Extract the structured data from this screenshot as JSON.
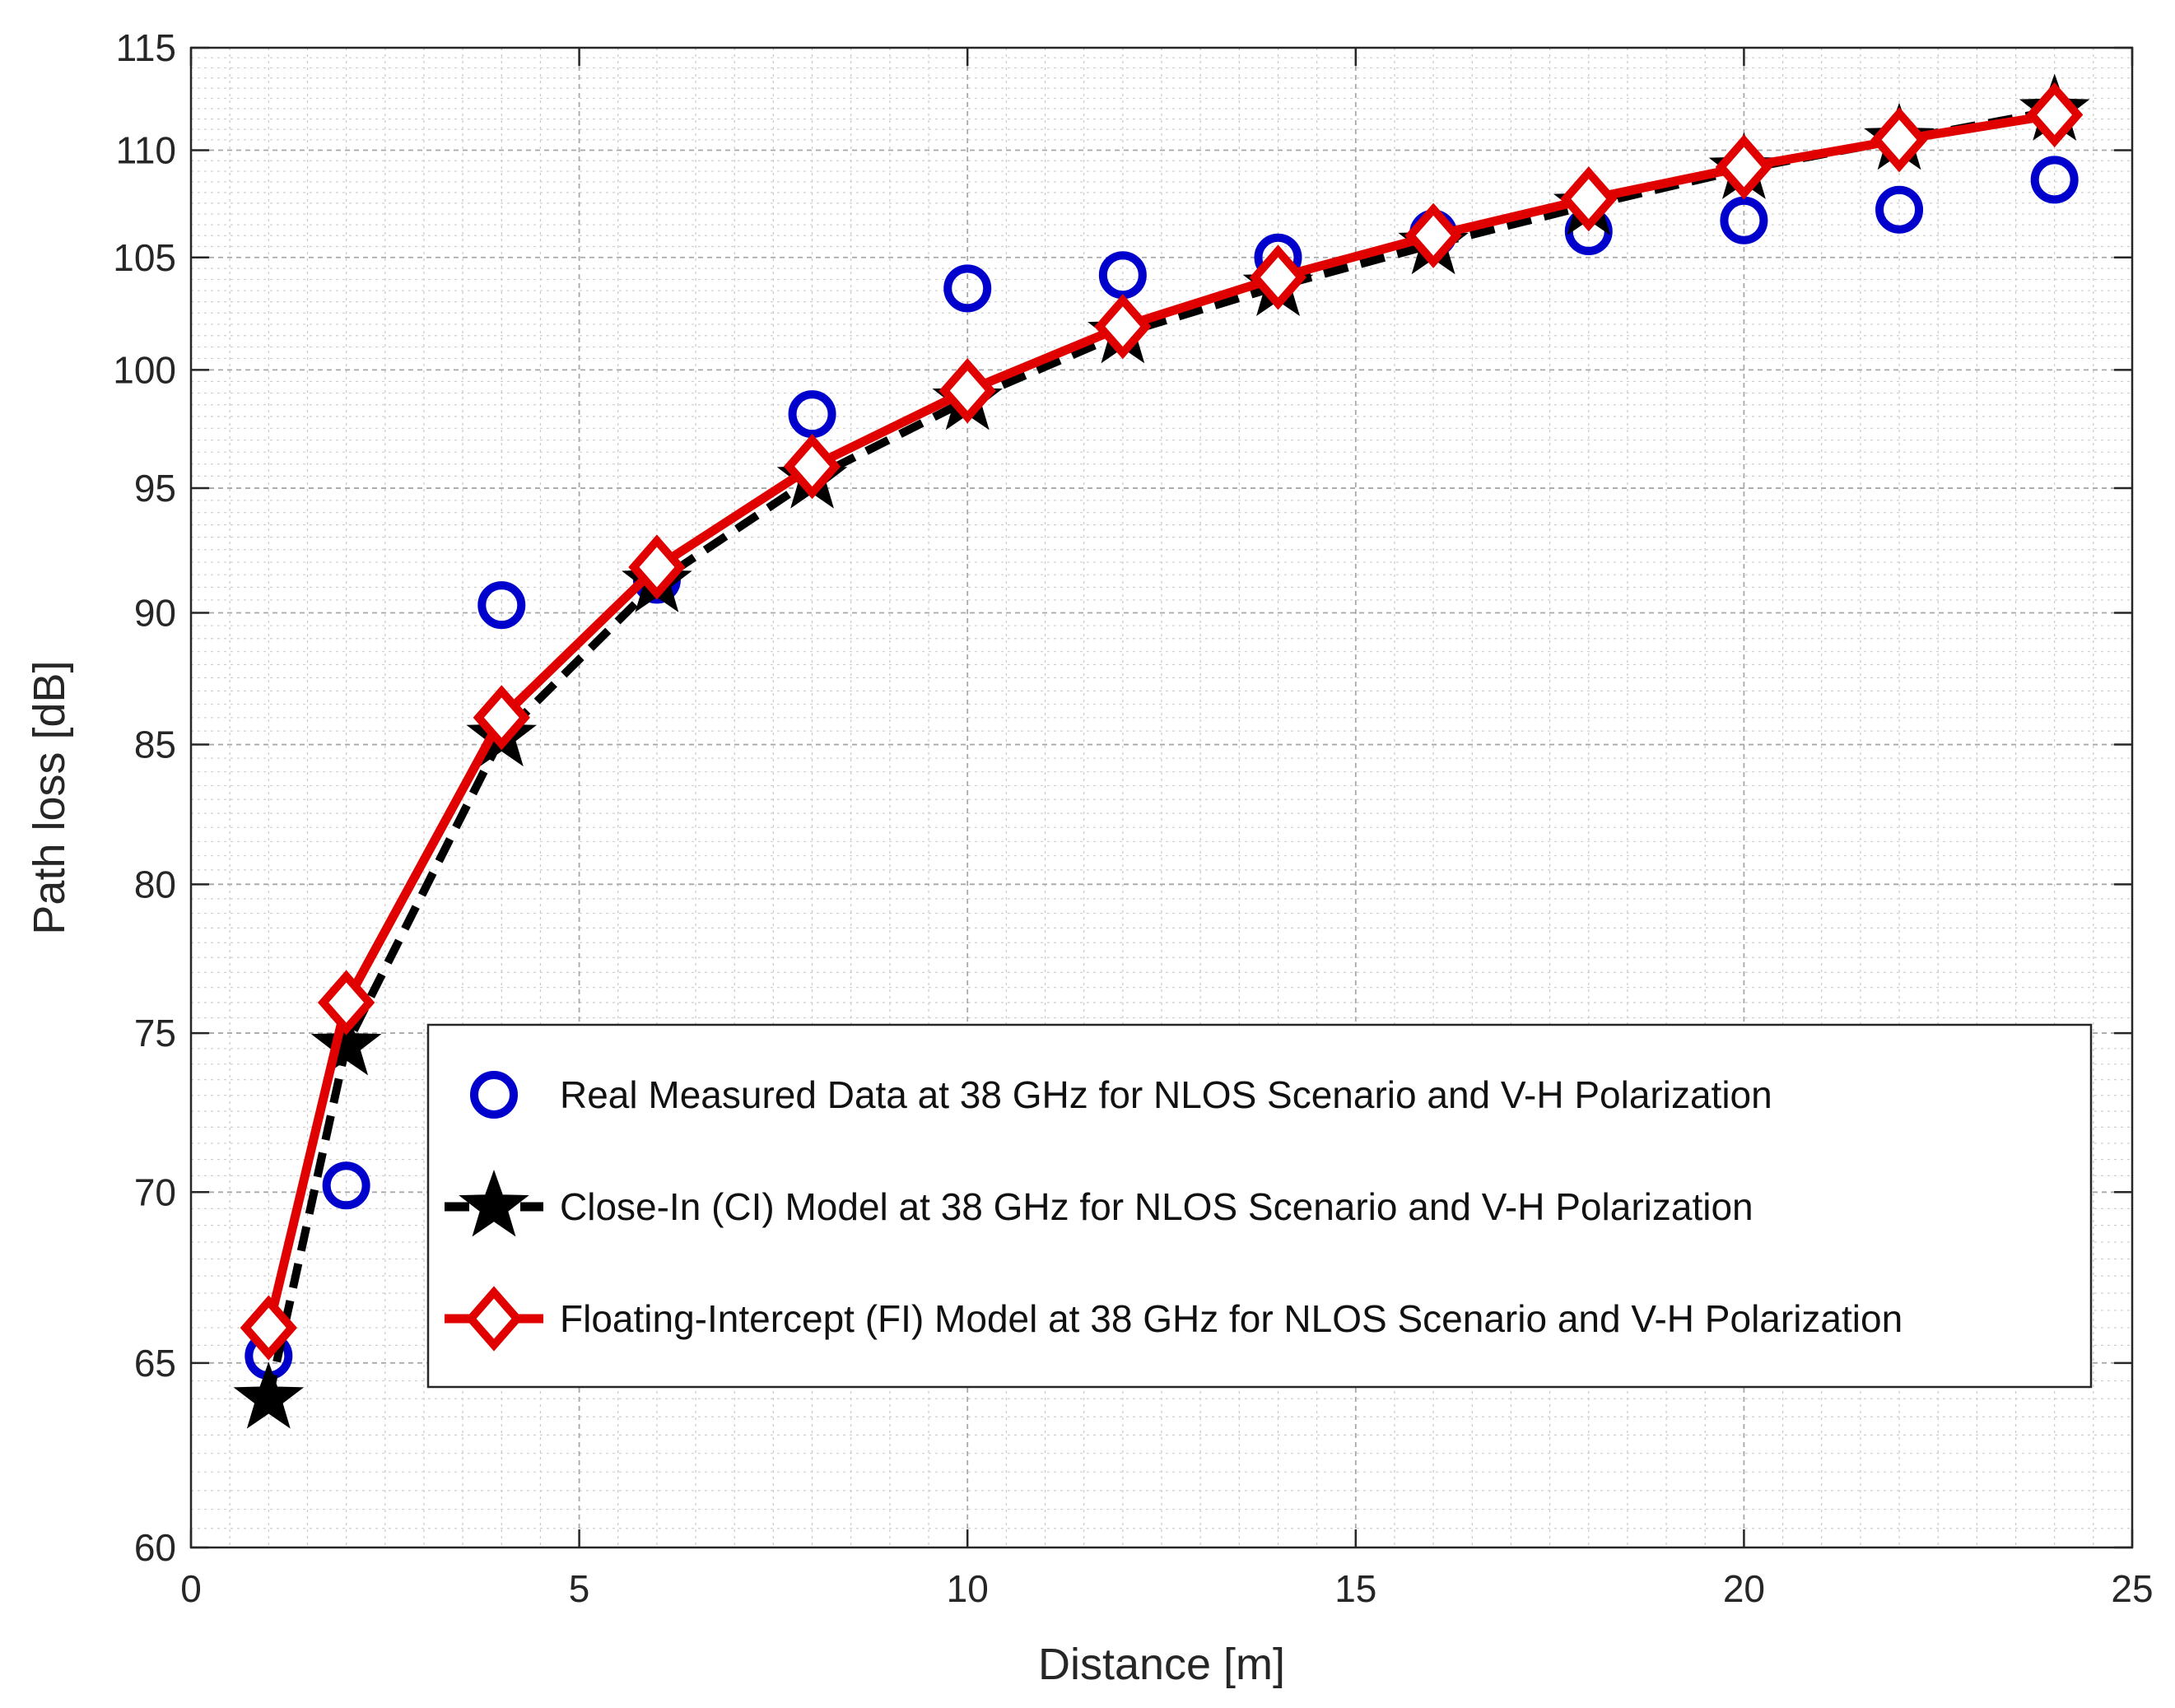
{
  "chart_data": {
    "type": "line",
    "title": "",
    "xlabel": "Distance [m]",
    "ylabel": "Path loss [dB]",
    "xlim": [
      0,
      25
    ],
    "ylim": [
      60,
      115
    ],
    "y_scale": "log",
    "grid": true,
    "minor_grid": true,
    "x_ticks": [
      0,
      5,
      10,
      15,
      20,
      25
    ],
    "y_ticks": [
      60,
      65,
      70,
      75,
      80,
      85,
      90,
      95,
      100,
      105,
      110,
      115
    ],
    "x": [
      1,
      2,
      4,
      6,
      8,
      10,
      12,
      14,
      16,
      18,
      20,
      22,
      24
    ],
    "legend_position": "lower-right",
    "series": [
      {
        "name": "Real Measured Data at 38 GHz for NLOS Scenario and V-H Polarization",
        "marker": "circle",
        "line": "none",
        "color": "#0000CC",
        "values": [
          65.2,
          70.2,
          90.3,
          91.3,
          98.1,
          103.6,
          104.2,
          105.0,
          106.1,
          106.2,
          106.7,
          107.2,
          108.6
        ]
      },
      {
        "name": "Close-In (CI) Model at 38 GHz for NLOS Scenario and V-H Polarization",
        "marker": "star",
        "line": "dashed",
        "color": "#000000",
        "values": [
          64.0,
          74.6,
          85.3,
          91.2,
          95.4,
          98.7,
          101.6,
          103.7,
          105.6,
          107.4,
          109.1,
          110.5,
          111.9
        ]
      },
      {
        "name": "Floating-Intercept (FI) Model at 38 GHz for NLOS Scenario and V-H Polarization",
        "marker": "diamond",
        "line": "solid",
        "color": "#E00000",
        "values": [
          66.0,
          76.0,
          86.0,
          91.8,
          95.9,
          99.1,
          101.9,
          104.1,
          106.0,
          107.7,
          109.2,
          110.5,
          111.7
        ]
      }
    ]
  }
}
